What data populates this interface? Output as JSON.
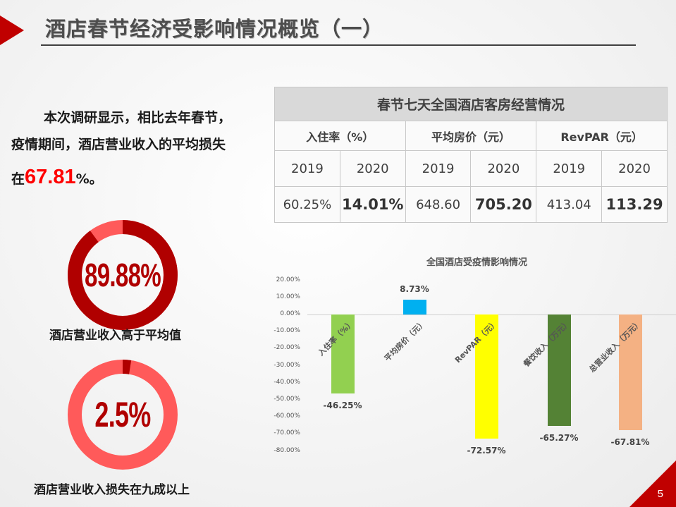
{
  "header": {
    "title": "酒店春节经济受影响情况概览（一）"
  },
  "summary": {
    "line1": "本次调研显示，相比去年春节，",
    "line2": "疫情期间，酒店营业收入的平均损失",
    "line3_prefix": "在",
    "highlight": "67.81",
    "line3_suffix": "%。",
    "highlight_color": "#ff0000"
  },
  "donuts": [
    {
      "value": "89.88%",
      "percent": 89.88,
      "caption": "酒店营业收入高于平均值",
      "main_color": "#b00000",
      "rest_color": "#ff5a5a"
    },
    {
      "value": "2.5%",
      "percent": 2.5,
      "caption": "酒店营业收入损失在九成以上",
      "main_color": "#b00000",
      "rest_color": "#ff5a5a"
    }
  ],
  "table": {
    "title": "春节七天全国酒店客房经营情况",
    "groups": [
      "入住率（%）",
      "平均房价（元）",
      "RevPAR（元）"
    ],
    "years": [
      "2019",
      "2020",
      "2019",
      "2020",
      "2019",
      "2020"
    ],
    "values": [
      "60.25%",
      "14.01%",
      "648.60",
      "705.20",
      "413.04",
      "113.29"
    ]
  },
  "chart_data": {
    "type": "bar",
    "title": "全国酒店受疫情影响情况",
    "categories": [
      "入住率（%）",
      "平均房价（元）",
      "RevPAR（元）",
      "餐饮收入（万元）",
      "总营业收入（万元）"
    ],
    "values": [
      -46.25,
      8.73,
      -72.57,
      -65.27,
      -67.81
    ],
    "value_labels": [
      "-46.25%",
      "8.73%",
      "-72.57%",
      "-65.27%",
      "-67.81%"
    ],
    "colors": [
      "#92d050",
      "#00b0f0",
      "#ffff00",
      "#548235",
      "#f4b183"
    ],
    "y_ticks": [
      "20.00%",
      "10.00%",
      "0.00%",
      "-10.00%",
      "-20.00%",
      "-30.00%",
      "-40.00%",
      "-50.00%",
      "-60.00%",
      "-70.00%",
      "-80.00%"
    ],
    "xlabel": "",
    "ylabel": "",
    "ylim": [
      -80,
      20
    ],
    "grid": false,
    "legend": "none"
  },
  "footer": {
    "page_number": "5",
    "accent_color": "#c00000"
  }
}
